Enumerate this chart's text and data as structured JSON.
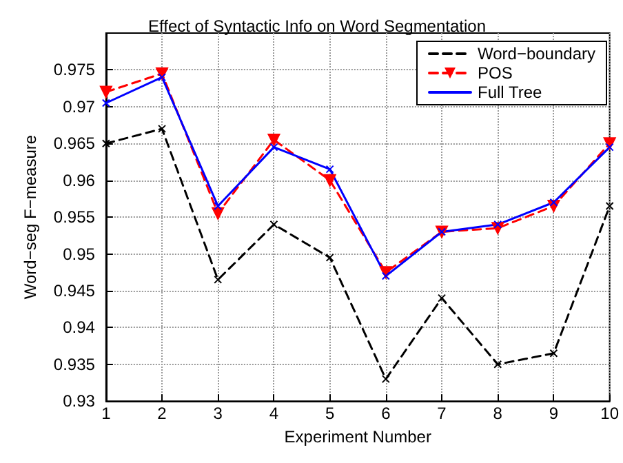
{
  "chart_data": {
    "type": "line",
    "title": "Effect of Syntactic Info on Word Segmentation",
    "xlabel": "Experiment Number",
    "ylabel": "Word−seg F−measure",
    "x": [
      1,
      2,
      3,
      4,
      5,
      6,
      7,
      8,
      9,
      10
    ],
    "series": [
      {
        "name": "Word−boundary",
        "color": "#000000",
        "marker": "cross",
        "line_style": "dashed",
        "values": [
          0.965,
          0.967,
          0.9465,
          0.954,
          0.9495,
          0.933,
          0.944,
          0.935,
          0.9365,
          0.9565
        ]
      },
      {
        "name": "POS",
        "color": "#ff0000",
        "marker": "triangle",
        "line_style": "dashed",
        "values": [
          0.972,
          0.9745,
          0.9555,
          0.9655,
          0.96,
          0.9475,
          0.953,
          0.9535,
          0.9565,
          0.965
        ]
      },
      {
        "name": "Full Tree",
        "color": "#0000ff",
        "marker": "cross",
        "line_style": "solid",
        "values": [
          0.9705,
          0.974,
          0.9565,
          0.9645,
          0.9615,
          0.947,
          0.953,
          0.954,
          0.957,
          0.9645
        ]
      }
    ],
    "xlim": [
      1,
      10
    ],
    "xticks": [
      1,
      2,
      3,
      4,
      5,
      6,
      7,
      8,
      9,
      10
    ],
    "ylim": [
      0.93,
      0.98
    ],
    "yticks": [
      0.93,
      0.935,
      0.94,
      0.945,
      0.95,
      0.955,
      0.96,
      0.965,
      0.97,
      0.975
    ],
    "grid": true,
    "legend": "top right"
  }
}
